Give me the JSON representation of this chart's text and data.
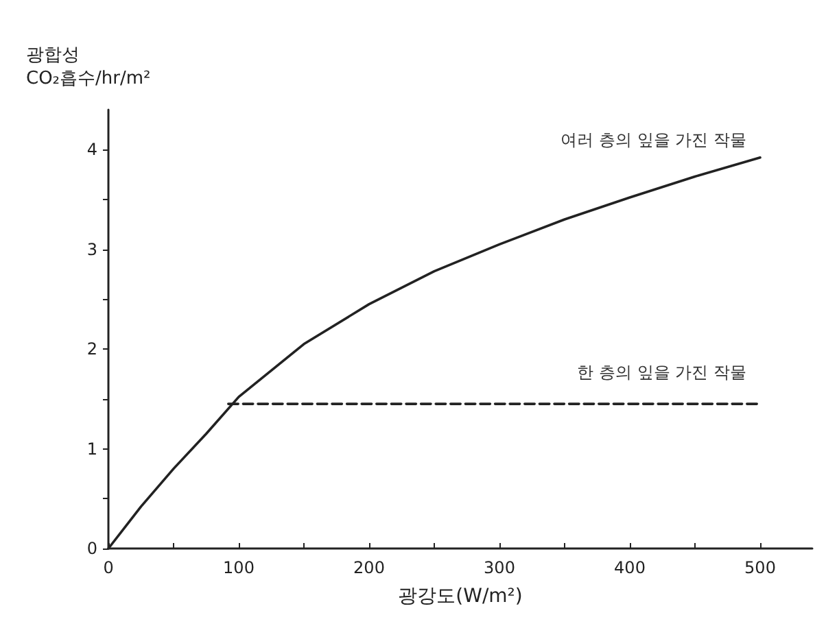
{
  "chart_data": {
    "type": "line",
    "xlabel": "광강도(W/m²)",
    "ylabel": "광합성\nCO₂흡수/hr/m²",
    "xlim": [
      0,
      540
    ],
    "ylim": [
      0,
      4.4
    ],
    "xticks": [
      0,
      {
        "value": 50,
        "label": null
      },
      100,
      {
        "value": 150,
        "label": null
      },
      200,
      {
        "value": 250,
        "label": null
      },
      300,
      {
        "value": 350,
        "label": null
      },
      400,
      {
        "value": 450,
        "label": null
      },
      500
    ],
    "yticks": [
      0,
      {
        "value": 0.5,
        "label": null
      },
      1,
      {
        "value": 1.5,
        "label": null
      },
      2,
      {
        "value": 2.5,
        "label": null
      },
      3,
      {
        "value": 3.5,
        "label": null
      },
      4
    ],
    "grid": false,
    "legend": false,
    "marker": "none",
    "series": [
      {
        "name": "여러 층의 잎을 가진 작물",
        "color": "#222222",
        "line_style": "solid",
        "x": [
          0,
          25,
          50,
          75,
          100,
          150,
          200,
          250,
          300,
          350,
          400,
          450,
          500
        ],
        "values": [
          0,
          0.42,
          0.8,
          1.15,
          1.52,
          2.05,
          2.45,
          2.78,
          3.05,
          3.3,
          3.52,
          3.73,
          3.92
        ]
      },
      {
        "name": "한 층의 잎을 가진 작물",
        "color": "#222222",
        "line_style": "dashed",
        "x": [
          92,
          500
        ],
        "values": [
          1.45,
          1.45
        ]
      }
    ]
  }
}
